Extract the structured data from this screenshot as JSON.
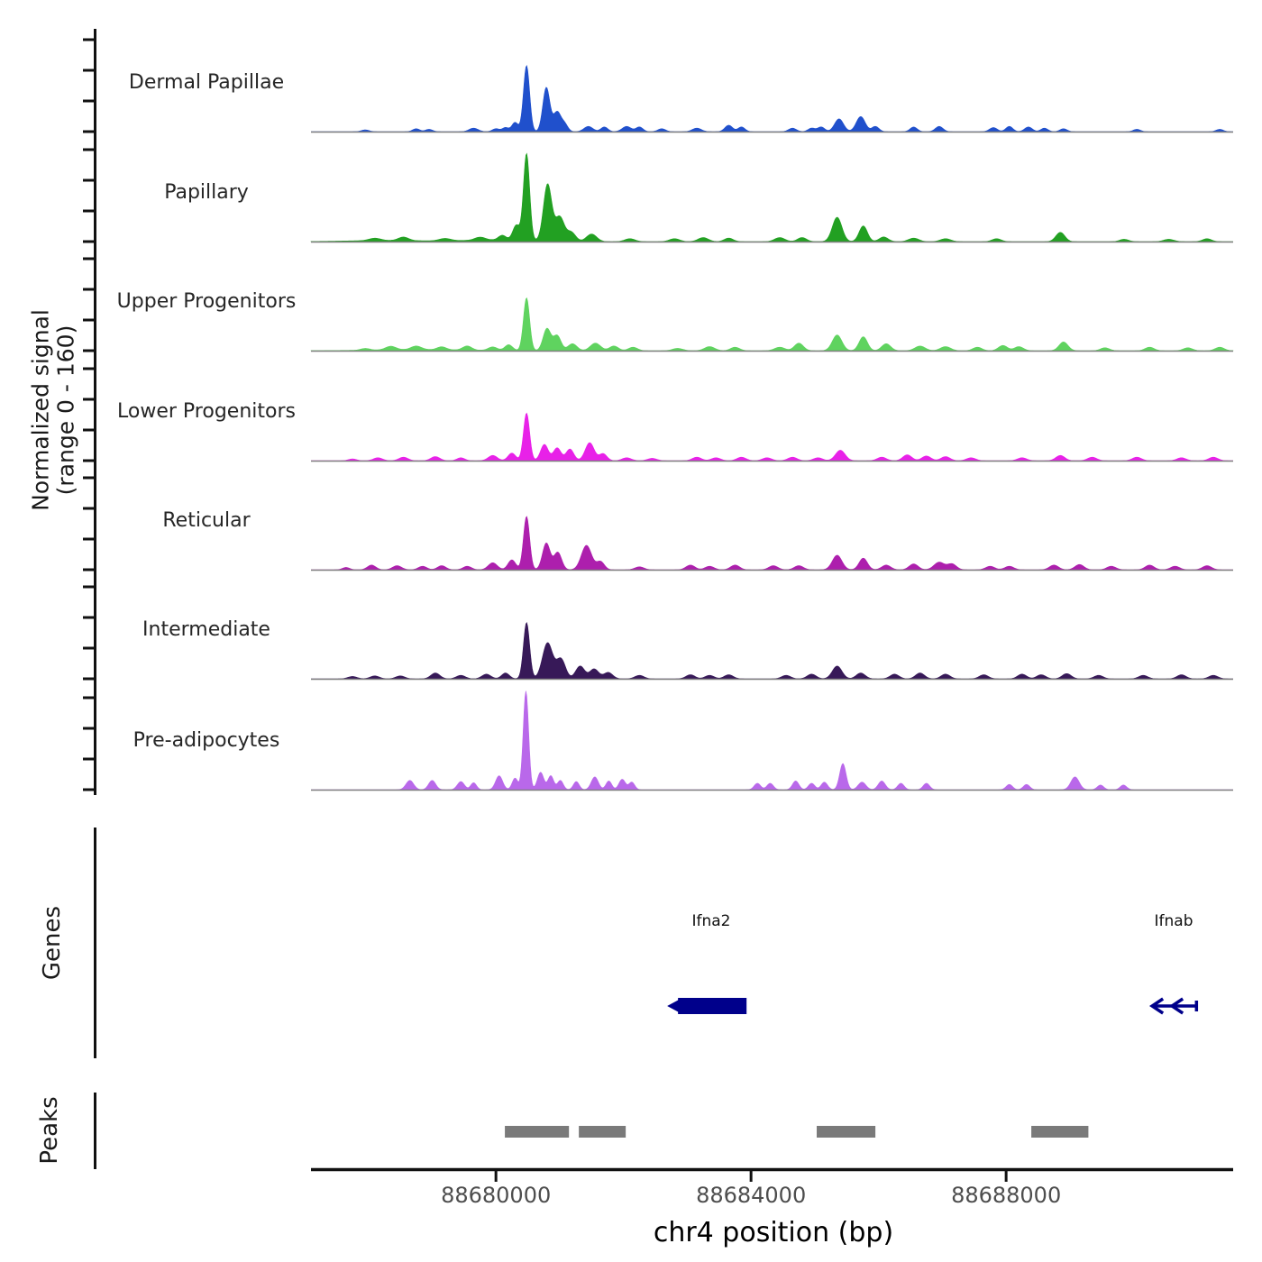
{
  "chart_data": {
    "type": "area",
    "title": "",
    "xlabel": "chr4 position (bp)",
    "ylabel_line1": "Normalized signal",
    "ylabel_line2": "(range 0 - 160)",
    "yrange": [
      0,
      160
    ],
    "region": {
      "chrom": "chr4",
      "start": 88677100,
      "end": 88691560
    },
    "xticks": [
      88680000,
      88684000,
      88688000
    ],
    "grid": false,
    "legend": "none",
    "tracks": [
      {
        "name": "Dermal Papillae",
        "color": "#2050cc",
        "peaks": [
          [
            88677950,
            60,
            3
          ],
          [
            88678750,
            55,
            5
          ],
          [
            88678950,
            55,
            4
          ],
          [
            88679650,
            70,
            6
          ],
          [
            88680000,
            55,
            5
          ],
          [
            88680150,
            50,
            7
          ],
          [
            88680300,
            50,
            16
          ],
          [
            88680480,
            48,
            114
          ],
          [
            88680790,
            55,
            76
          ],
          [
            88680960,
            60,
            34
          ],
          [
            88681080,
            50,
            12
          ],
          [
            88681450,
            70,
            9
          ],
          [
            88681700,
            55,
            8
          ],
          [
            88682050,
            70,
            9
          ],
          [
            88682250,
            55,
            8
          ],
          [
            88682600,
            60,
            5
          ],
          [
            88683150,
            70,
            6
          ],
          [
            88683650,
            60,
            11
          ],
          [
            88683850,
            55,
            8
          ],
          [
            88684650,
            60,
            6
          ],
          [
            88684950,
            55,
            6
          ],
          [
            88685100,
            55,
            8
          ],
          [
            88685380,
            70,
            22
          ],
          [
            88685720,
            70,
            26
          ],
          [
            88685950,
            55,
            9
          ],
          [
            88686550,
            55,
            8
          ],
          [
            88686950,
            60,
            9
          ],
          [
            88687800,
            60,
            7
          ],
          [
            88688050,
            55,
            9
          ],
          [
            88688350,
            60,
            8
          ],
          [
            88688600,
            55,
            6
          ],
          [
            88688900,
            55,
            5
          ],
          [
            88690050,
            55,
            4
          ],
          [
            88691350,
            55,
            4
          ]
        ]
      },
      {
        "name": "Papillary",
        "color": "#22a022",
        "peaks": [
          [
            88678300,
            600,
            2
          ],
          [
            88680000,
            500,
            3
          ],
          [
            88678100,
            90,
            4
          ],
          [
            88678550,
            80,
            6
          ],
          [
            88679200,
            90,
            4
          ],
          [
            88679750,
            80,
            5
          ],
          [
            88680100,
            60,
            8
          ],
          [
            88680320,
            55,
            26
          ],
          [
            88680480,
            48,
            150
          ],
          [
            88680810,
            65,
            98
          ],
          [
            88681000,
            70,
            42
          ],
          [
            88681180,
            70,
            16
          ],
          [
            88681500,
            80,
            13
          ],
          [
            88682100,
            80,
            5
          ],
          [
            88682800,
            80,
            5
          ],
          [
            88683250,
            80,
            7
          ],
          [
            88683650,
            70,
            6
          ],
          [
            88684450,
            80,
            7
          ],
          [
            88684800,
            70,
            7
          ],
          [
            88685350,
            75,
            42
          ],
          [
            88685760,
            65,
            27
          ],
          [
            88686080,
            70,
            8
          ],
          [
            88686550,
            80,
            6
          ],
          [
            88687050,
            80,
            5
          ],
          [
            88687850,
            70,
            5
          ],
          [
            88688850,
            70,
            16
          ],
          [
            88689850,
            70,
            4
          ],
          [
            88690550,
            80,
            4
          ],
          [
            88691150,
            70,
            5
          ]
        ]
      },
      {
        "name": "Upper Progenitors",
        "color": "#5fd35f",
        "peaks": [
          [
            88678800,
            700,
            2
          ],
          [
            88677950,
            70,
            3
          ],
          [
            88678350,
            80,
            6
          ],
          [
            88678750,
            80,
            6
          ],
          [
            88679150,
            70,
            5
          ],
          [
            88679550,
            70,
            7
          ],
          [
            88679950,
            70,
            6
          ],
          [
            88680200,
            60,
            10
          ],
          [
            88680480,
            48,
            91
          ],
          [
            88680800,
            60,
            38
          ],
          [
            88680960,
            60,
            26
          ],
          [
            88681200,
            70,
            12
          ],
          [
            88681560,
            80,
            13
          ],
          [
            88681850,
            70,
            8
          ],
          [
            88682150,
            70,
            6
          ],
          [
            88682850,
            80,
            4
          ],
          [
            88683350,
            80,
            7
          ],
          [
            88683750,
            70,
            6
          ],
          [
            88684450,
            80,
            6
          ],
          [
            88684750,
            70,
            13
          ],
          [
            88685350,
            75,
            27
          ],
          [
            88685760,
            65,
            24
          ],
          [
            88686120,
            70,
            12
          ],
          [
            88686650,
            80,
            8
          ],
          [
            88687050,
            80,
            7
          ],
          [
            88687550,
            70,
            6
          ],
          [
            88687950,
            70,
            9
          ],
          [
            88688200,
            70,
            7
          ],
          [
            88688900,
            70,
            15
          ],
          [
            88689550,
            70,
            5
          ],
          [
            88690250,
            70,
            6
          ],
          [
            88690850,
            70,
            5
          ],
          [
            88691350,
            70,
            6
          ]
        ]
      },
      {
        "name": "Lower Progenitors",
        "color": "#e821e8",
        "peaks": [
          [
            88677750,
            60,
            3
          ],
          [
            88678150,
            70,
            5
          ],
          [
            88678550,
            70,
            6
          ],
          [
            88679050,
            70,
            7
          ],
          [
            88679450,
            60,
            5
          ],
          [
            88679950,
            70,
            9
          ],
          [
            88680250,
            60,
            13
          ],
          [
            88680480,
            48,
            82
          ],
          [
            88680760,
            60,
            28
          ],
          [
            88680960,
            60,
            22
          ],
          [
            88681160,
            60,
            20
          ],
          [
            88681470,
            70,
            31
          ],
          [
            88681680,
            60,
            12
          ],
          [
            88682050,
            70,
            5
          ],
          [
            88682450,
            70,
            4
          ],
          [
            88683150,
            70,
            6
          ],
          [
            88683450,
            70,
            5
          ],
          [
            88683850,
            70,
            6
          ],
          [
            88684250,
            70,
            5
          ],
          [
            88684650,
            70,
            6
          ],
          [
            88685050,
            70,
            5
          ],
          [
            88685400,
            75,
            18
          ],
          [
            88686050,
            70,
            6
          ],
          [
            88686450,
            70,
            10
          ],
          [
            88686750,
            70,
            8
          ],
          [
            88687050,
            70,
            7
          ],
          [
            88687450,
            70,
            5
          ],
          [
            88688250,
            70,
            5
          ],
          [
            88688850,
            70,
            9
          ],
          [
            88689350,
            70,
            6
          ],
          [
            88690050,
            70,
            6
          ],
          [
            88690750,
            70,
            5
          ],
          [
            88691250,
            70,
            6
          ]
        ]
      },
      {
        "name": "Reticular",
        "color": "#ad1fad",
        "peaks": [
          [
            88677650,
            55,
            4
          ],
          [
            88678050,
            65,
            8
          ],
          [
            88678450,
            70,
            7
          ],
          [
            88678850,
            65,
            6
          ],
          [
            88679150,
            65,
            7
          ],
          [
            88679550,
            65,
            6
          ],
          [
            88679950,
            70,
            12
          ],
          [
            88680250,
            60,
            17
          ],
          [
            88680480,
            48,
            92
          ],
          [
            88680790,
            60,
            46
          ],
          [
            88680970,
            60,
            30
          ],
          [
            88681420,
            80,
            42
          ],
          [
            88681640,
            60,
            14
          ],
          [
            88682250,
            70,
            5
          ],
          [
            88683050,
            70,
            8
          ],
          [
            88683350,
            70,
            6
          ],
          [
            88683750,
            70,
            8
          ],
          [
            88684350,
            70,
            7
          ],
          [
            88684750,
            70,
            7
          ],
          [
            88685350,
            75,
            25
          ],
          [
            88685760,
            65,
            20
          ],
          [
            88686120,
            70,
            8
          ],
          [
            88686550,
            70,
            10
          ],
          [
            88686950,
            80,
            13
          ],
          [
            88687150,
            70,
            10
          ],
          [
            88687750,
            70,
            6
          ],
          [
            88688050,
            70,
            6
          ],
          [
            88688750,
            70,
            8
          ],
          [
            88689150,
            70,
            9
          ],
          [
            88689650,
            70,
            6
          ],
          [
            88690250,
            70,
            8
          ],
          [
            88690650,
            70,
            6
          ],
          [
            88691150,
            70,
            7
          ]
        ]
      },
      {
        "name": "Intermediate",
        "color": "#371958",
        "peaks": [
          [
            88677750,
            70,
            4
          ],
          [
            88678100,
            70,
            5
          ],
          [
            88678500,
            70,
            5
          ],
          [
            88679050,
            70,
            10
          ],
          [
            88679450,
            70,
            6
          ],
          [
            88679850,
            70,
            8
          ],
          [
            88680150,
            60,
            10
          ],
          [
            88680480,
            48,
            97
          ],
          [
            88680810,
            80,
            62
          ],
          [
            88681020,
            70,
            34
          ],
          [
            88681320,
            70,
            22
          ],
          [
            88681540,
            70,
            17
          ],
          [
            88681760,
            70,
            11
          ],
          [
            88682250,
            70,
            6
          ],
          [
            88683050,
            70,
            7
          ],
          [
            88683350,
            70,
            6
          ],
          [
            88683650,
            70,
            7
          ],
          [
            88684550,
            70,
            6
          ],
          [
            88684950,
            70,
            8
          ],
          [
            88685350,
            75,
            22
          ],
          [
            88685720,
            70,
            10
          ],
          [
            88686250,
            70,
            8
          ],
          [
            88686650,
            70,
            10
          ],
          [
            88687050,
            70,
            8
          ],
          [
            88687650,
            70,
            7
          ],
          [
            88688250,
            70,
            8
          ],
          [
            88688550,
            70,
            7
          ],
          [
            88688950,
            70,
            9
          ],
          [
            88689450,
            70,
            6
          ],
          [
            88690150,
            70,
            6
          ],
          [
            88690750,
            70,
            7
          ],
          [
            88691250,
            70,
            6
          ]
        ]
      },
      {
        "name": "Pre-adipocytes",
        "color": "#b968ea",
        "peaks": [
          [
            88678650,
            60,
            16
          ],
          [
            88679000,
            55,
            16
          ],
          [
            88679450,
            55,
            14
          ],
          [
            88679650,
            45,
            12
          ],
          [
            88680050,
            55,
            24
          ],
          [
            88680300,
            45,
            20
          ],
          [
            88680470,
            42,
            170
          ],
          [
            88680700,
            50,
            30
          ],
          [
            88680860,
            45,
            24
          ],
          [
            88681010,
            45,
            16
          ],
          [
            88681260,
            45,
            14
          ],
          [
            88681550,
            55,
            22
          ],
          [
            88681770,
            45,
            15
          ],
          [
            88681980,
            50,
            18
          ],
          [
            88682130,
            45,
            13
          ],
          [
            88684100,
            50,
            11
          ],
          [
            88684300,
            50,
            11
          ],
          [
            88684700,
            50,
            15
          ],
          [
            88684950,
            50,
            11
          ],
          [
            88685150,
            50,
            13
          ],
          [
            88685440,
            50,
            45
          ],
          [
            88685740,
            60,
            13
          ],
          [
            88686050,
            55,
            15
          ],
          [
            88686350,
            50,
            11
          ],
          [
            88686750,
            50,
            11
          ],
          [
            88688050,
            50,
            9
          ],
          [
            88688320,
            50,
            9
          ],
          [
            88689080,
            65,
            22
          ],
          [
            88689480,
            50,
            8
          ],
          [
            88689840,
            50,
            8
          ]
        ]
      }
    ],
    "genes": {
      "label": "Genes",
      "items": [
        {
          "name": "Ifna2",
          "start": 88682855,
          "end": 88683930,
          "strand": "-",
          "glyph": "box"
        },
        {
          "name": "Ifnab",
          "start": 88690290,
          "end": 88690985,
          "strand": "-",
          "glyph": "arrow-line"
        }
      ],
      "gene_color": "#00008b"
    },
    "peaks_track": {
      "label": "Peaks",
      "color": "#7a7a7a",
      "intervals": [
        [
          88680140,
          88681145
        ],
        [
          88681300,
          88682035
        ],
        [
          88685030,
          88685950
        ],
        [
          88688395,
          88689290
        ]
      ]
    }
  }
}
